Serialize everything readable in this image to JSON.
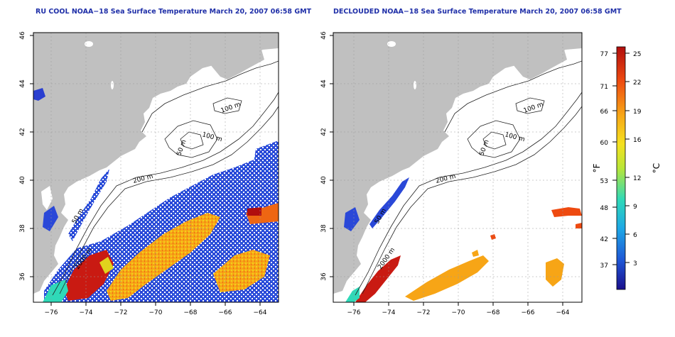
{
  "titles": {
    "left": "RU COOL NOAA−18 Sea Surface Temperature March 20, 2007 06:58 GMT",
    "right": "DECLOUDED NOAA−18 Sea Surface Temperature March 20, 2007 06:58 GMT"
  },
  "axes": {
    "lat_ticks": [
      "46",
      "44",
      "42",
      "40",
      "38",
      "36"
    ],
    "lon_ticks": [
      "−76",
      "−74",
      "−72",
      "−70",
      "−68",
      "−66",
      "−64"
    ],
    "lat_range": [
      35,
      46
    ],
    "lon_range": [
      -77,
      -63
    ]
  },
  "contours": {
    "labels": [
      "100 m",
      "100 m",
      "50 m",
      "200 m",
      "50 m",
      "2000 m"
    ]
  },
  "colorbar": {
    "fahrenheit_label": "°F",
    "celsius_label": "°C",
    "fahrenheit_ticks": [
      "77",
      "71",
      "66",
      "60",
      "53",
      "48",
      "42",
      "37"
    ],
    "celsius_ticks": [
      "25",
      "22",
      "19",
      "16",
      "12",
      "9",
      "6",
      "3"
    ],
    "colors": [
      "#1a0f8c",
      "#1e56d6",
      "#1da7e6",
      "#2fd9b8",
      "#b9e638",
      "#f5e11f",
      "#f7a516",
      "#ee4a10",
      "#b10e0e"
    ]
  },
  "colors": {
    "land": "#c0c0c0",
    "ocean": "#ffffff",
    "title": "#1f2fa8"
  }
}
